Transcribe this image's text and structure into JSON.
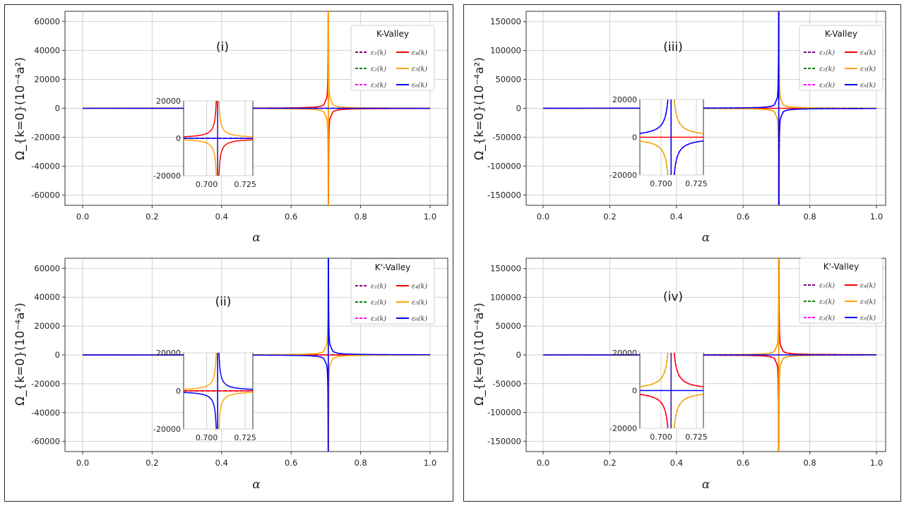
{
  "chart_data": [
    {
      "type": "line",
      "panel_label": "(i)",
      "legend_title": "K-Valley",
      "xlabel": "α",
      "ylabel": "Ω_{k=0}(10⁻⁴a²)",
      "xlim": [
        -0.04,
        1.05
      ],
      "ylim": [
        -67000,
        67000
      ],
      "x_ticks": [
        "0.0",
        "0.2",
        "0.4",
        "0.6",
        "0.8",
        "1.0"
      ],
      "y_ticks": [
        "-60000",
        "-40000",
        "-20000",
        "0",
        "20000",
        "40000",
        "60000"
      ],
      "series": [
        {
          "name": "ε₁(k)",
          "color": "#800080",
          "style": "dashed",
          "amplitude": 0
        },
        {
          "name": "ε₂(k)",
          "color": "#008000",
          "style": "dashed",
          "amplitude": 0
        },
        {
          "name": "ε₃(k)",
          "color": "#ff00ff",
          "style": "dashed",
          "amplitude": 0
        },
        {
          "name": "ε₄(k)",
          "color": "#ff0000",
          "style": "solid",
          "amplitude": -60000
        },
        {
          "name": "ε₅(k)",
          "color": "#ffa500",
          "style": "solid",
          "amplitude": 60000
        },
        {
          "name": "ε₆(k)",
          "color": "#0000ff",
          "style": "solid",
          "amplitude": 0
        }
      ],
      "inset": {
        "xlim": [
          0.685,
          0.73
        ],
        "ylim": [
          -20000,
          20000
        ],
        "x_ticks": [
          "0.700",
          "0.725"
        ],
        "y_ticks": [
          "-20000",
          "0",
          "20000"
        ]
      }
    },
    {
      "type": "line",
      "panel_label": "(ii)",
      "legend_title": "K'-Valley",
      "xlabel": "α",
      "ylabel": "Ω_{k=0}(10⁻⁴a²)",
      "xlim": [
        -0.04,
        1.05
      ],
      "ylim": [
        -67000,
        67000
      ],
      "x_ticks": [
        "0.0",
        "0.2",
        "0.4",
        "0.6",
        "0.8",
        "1.0"
      ],
      "y_ticks": [
        "-60000",
        "-40000",
        "-20000",
        "0",
        "20000",
        "40000",
        "60000"
      ],
      "series": [
        {
          "name": "ε₁(k)",
          "color": "#800080",
          "style": "dashed",
          "amplitude": 0
        },
        {
          "name": "ε₂(k)",
          "color": "#008000",
          "style": "dashed",
          "amplitude": 0
        },
        {
          "name": "ε₃(k)",
          "color": "#ff00ff",
          "style": "dashed",
          "amplitude": 0
        },
        {
          "name": "ε₄(k)",
          "color": "#ff0000",
          "style": "solid",
          "amplitude": 0
        },
        {
          "name": "ε₅(k)",
          "color": "#ffa500",
          "style": "solid",
          "amplitude": -60000
        },
        {
          "name": "ε₆(k)",
          "color": "#0000ff",
          "style": "solid",
          "amplitude": 60000
        }
      ],
      "inset": {
        "xlim": [
          0.685,
          0.73
        ],
        "ylim": [
          -20000,
          20000
        ],
        "x_ticks": [
          "0.700",
          "0.725"
        ],
        "y_ticks": [
          "-20000",
          "0",
          "20000"
        ]
      }
    },
    {
      "type": "line",
      "panel_label": "(iii)",
      "legend_title": "K-Valley",
      "xlabel": "α",
      "ylabel": "Ω_{k=0}(10⁻⁴a²)",
      "xlim": [
        -0.04,
        1.05
      ],
      "ylim": [
        -168000,
        168000
      ],
      "x_ticks": [
        "0.0",
        "0.2",
        "0.4",
        "0.6",
        "0.8",
        "1.0"
      ],
      "y_ticks": [
        "-150000",
        "-100000",
        "-50000",
        "0",
        "50000",
        "100000",
        "150000"
      ],
      "series": [
        {
          "name": "ε₁(k)",
          "color": "#800080",
          "style": "dashed",
          "amplitude": -150000
        },
        {
          "name": "ε₂(k)",
          "color": "#008000",
          "style": "dashed",
          "amplitude": 150000
        },
        {
          "name": "ε₃(k)",
          "color": "#ff00ff",
          "style": "dashed",
          "amplitude": -150000
        },
        {
          "name": "ε₄(k)",
          "color": "#ff0000",
          "style": "solid",
          "amplitude": 0
        },
        {
          "name": "ε₅(k)",
          "color": "#ffa500",
          "style": "solid",
          "amplitude": 150000
        },
        {
          "name": "ε₆(k)",
          "color": "#0000ff",
          "style": "solid",
          "amplitude": -150000
        }
      ],
      "inset": {
        "xlim": [
          0.685,
          0.73
        ],
        "ylim": [
          -20000,
          20000
        ],
        "x_ticks": [
          "0.700",
          "0.725"
        ],
        "y_ticks": [
          "-20000",
          "0",
          "20000"
        ]
      }
    },
    {
      "type": "line",
      "panel_label": "(iv)",
      "legend_title": "K'-Valley",
      "xlabel": "α",
      "ylabel": "Ω_{k=0}(10⁻⁴a²)",
      "xlim": [
        -0.04,
        1.05
      ],
      "ylim": [
        -168000,
        168000
      ],
      "x_ticks": [
        "0.0",
        "0.2",
        "0.4",
        "0.6",
        "0.8",
        "1.0"
      ],
      "y_ticks": [
        "-150000",
        "-100000",
        "-50000",
        "0",
        "50000",
        "100000",
        "150000"
      ],
      "series": [
        {
          "name": "ε₁(k)",
          "color": "#800080",
          "style": "dashed",
          "amplitude": 150000
        },
        {
          "name": "ε₂(k)",
          "color": "#008000",
          "style": "dashed",
          "amplitude": -150000
        },
        {
          "name": "ε₃(k)",
          "color": "#ff00ff",
          "style": "dashed",
          "amplitude": 150000
        },
        {
          "name": "ε₄(k)",
          "color": "#ff0000",
          "style": "solid",
          "amplitude": 150000
        },
        {
          "name": "ε₅(k)",
          "color": "#ffa500",
          "style": "solid",
          "amplitude": -150000
        },
        {
          "name": "ε₆(k)",
          "color": "#0000ff",
          "style": "solid",
          "amplitude": 0
        }
      ],
      "inset": {
        "xlim": [
          0.685,
          0.73
        ],
        "ylim": [
          -20000,
          20000
        ],
        "x_ticks": [
          "0.700",
          "0.725"
        ],
        "y_ticks": [
          "-20000",
          "0",
          "20000"
        ]
      }
    }
  ]
}
